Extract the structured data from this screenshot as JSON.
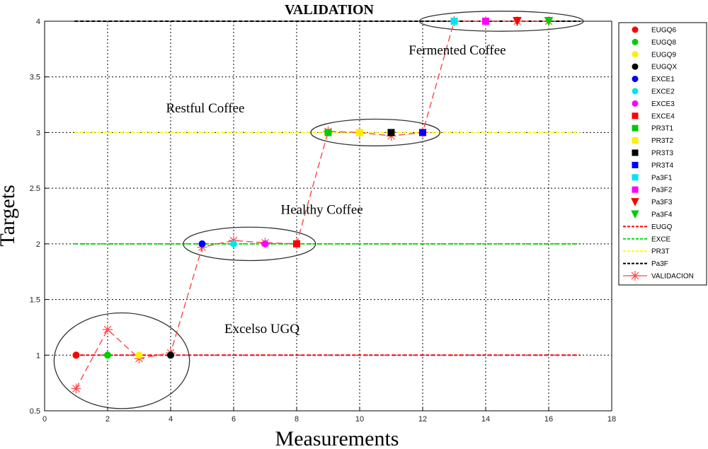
{
  "chart_data": {
    "type": "scatter",
    "title": "VALIDATION",
    "xlabel": "Measurements",
    "ylabel": "Targets",
    "xlim": [
      0,
      18
    ],
    "ylim": [
      0.5,
      4
    ],
    "xticks": [
      "0",
      "2",
      "4",
      "6",
      "8",
      "10",
      "12",
      "14",
      "16",
      "18"
    ],
    "yticks": [
      "0.5",
      "1",
      "1.5",
      "2",
      "2.5",
      "3",
      "3.5",
      "4"
    ],
    "grid": true,
    "legend_position": "right",
    "reference_lines": [
      {
        "name": "EUGQ",
        "y": 1,
        "color": "#ff0000"
      },
      {
        "name": "EXCE",
        "y": 2,
        "color": "#00dd00"
      },
      {
        "name": "PR3T",
        "y": 3,
        "color": "#ffff00"
      },
      {
        "name": "Pa3F",
        "y": 4,
        "color": "#000000"
      }
    ],
    "points": [
      {
        "name": "EUGQ6",
        "x": 1,
        "y": 1,
        "marker": "circle",
        "color": "#ff0000"
      },
      {
        "name": "EUGQ8",
        "x": 2,
        "y": 1,
        "marker": "circle",
        "color": "#00cc00"
      },
      {
        "name": "EUGQ9",
        "x": 3,
        "y": 1,
        "marker": "circle",
        "color": "#ffee00"
      },
      {
        "name": "EUGQX",
        "x": 4,
        "y": 1,
        "marker": "circle",
        "color": "#000000"
      },
      {
        "name": "EXCE1",
        "x": 5,
        "y": 2,
        "marker": "circle",
        "color": "#0000ff"
      },
      {
        "name": "EXCE2",
        "x": 6,
        "y": 2,
        "marker": "circle",
        "color": "#00e5ee"
      },
      {
        "name": "EXCE3",
        "x": 7,
        "y": 2,
        "marker": "circle",
        "color": "#ff00ff"
      },
      {
        "name": "EXCE4",
        "x": 8,
        "y": 2,
        "marker": "square",
        "color": "#ff0000"
      },
      {
        "name": "PR3T1",
        "x": 9,
        "y": 3,
        "marker": "square",
        "color": "#00cc00"
      },
      {
        "name": "PR3T2",
        "x": 10,
        "y": 3,
        "marker": "square",
        "color": "#ffee00"
      },
      {
        "name": "PR3T3",
        "x": 11,
        "y": 3,
        "marker": "square",
        "color": "#000000"
      },
      {
        "name": "PR3T4",
        "x": 12,
        "y": 3,
        "marker": "square",
        "color": "#0000ff"
      },
      {
        "name": "Pa3F1",
        "x": 13,
        "y": 4,
        "marker": "square",
        "color": "#00e5ee"
      },
      {
        "name": "Pa3F2",
        "x": 14,
        "y": 4,
        "marker": "square",
        "color": "#ff00ff"
      },
      {
        "name": "Pa3F3",
        "x": 15,
        "y": 4,
        "marker": "triangle-down",
        "color": "#ff0000"
      },
      {
        "name": "Pa3F4",
        "x": 16,
        "y": 4,
        "marker": "triangle-down",
        "color": "#00cc00"
      }
    ],
    "validation": {
      "name": "VALIDACION",
      "color": "#ff4444",
      "x": [
        1,
        2,
        3,
        4,
        5,
        6,
        7,
        8,
        9,
        10,
        11,
        12,
        13,
        14,
        15,
        16
      ],
      "y": [
        0.7,
        1.23,
        0.97,
        1.02,
        1.97,
        2.03,
        2.01,
        2.0,
        3.01,
        3.0,
        2.97,
        3.0,
        4.0,
        4.0,
        4.0,
        4.0
      ]
    },
    "legend": [
      "EUGQ6",
      "EUGQ8",
      "EUGQ9",
      "EUGQX",
      "EXCE1",
      "EXCE2",
      "EXCE3",
      "EXCE4",
      "PR3T1",
      "PR3T2",
      "PR3T3",
      "PR3T4",
      "Pa3F1",
      "Pa3F2",
      "Pa3F3",
      "Pa3F4",
      "EUGQ",
      "EXCE",
      "PR3T",
      "Pa3F",
      "VALIDACION"
    ],
    "annotations": [
      {
        "text": "Excelso UGQ",
        "x": 6.9,
        "y": 1.2
      },
      {
        "text": "Healthy Coffee",
        "x": 8.8,
        "y": 2.27
      },
      {
        "text": "Restful Coffee",
        "x": 5.1,
        "y": 3.18
      },
      {
        "text": "Fermented Coffee",
        "x": 13.1,
        "y": 3.7
      }
    ],
    "group_ellipses": [
      {
        "cx": 2.45,
        "cy": 0.95,
        "rx": 2.15,
        "ry": 0.43
      },
      {
        "cx": 6.5,
        "cy": 2.0,
        "rx": 2.1,
        "ry": 0.15
      },
      {
        "cx": 10.5,
        "cy": 3.0,
        "rx": 2.05,
        "ry": 0.12
      },
      {
        "cx": 14.5,
        "cy": 4.0,
        "rx": 2.6,
        "ry": 0.09
      }
    ]
  }
}
